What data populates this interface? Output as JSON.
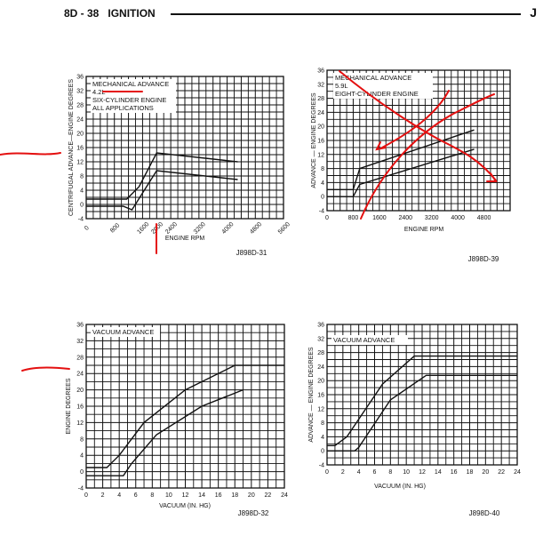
{
  "header": {
    "section": "8D - 38",
    "title": "IGNITION",
    "corner": "J"
  },
  "chart_data": [
    {
      "type": "line",
      "title": "MECHANICAL ADVANCE",
      "notes": [
        "4.2L",
        "SIX-CYLINDER ENGINE",
        "ALL APPLICATIONS"
      ],
      "xlabel": "ENGINE RPM",
      "ylabel": "CENTRIFUGAL ADVANCE—ENGINE DEGREES",
      "xlim": [
        0,
        5600
      ],
      "ylim": [
        -4,
        36
      ],
      "x_ticks": [
        "0",
        "800",
        "1600",
        "2000",
        "2400",
        "3200",
        "4000",
        "4800",
        "5600"
      ],
      "y_ticks": [
        "36",
        "32",
        "28",
        "24",
        "20",
        "16",
        "12",
        "8",
        "4",
        "0",
        "-4"
      ],
      "series": [
        {
          "name": "upper",
          "x": [
            0,
            1150,
            1500,
            2000,
            4300
          ],
          "y": [
            1.5,
            1.5,
            5,
            14.5,
            12
          ]
        },
        {
          "name": "lower",
          "x": [
            0,
            1050,
            1300,
            2000,
            4300
          ],
          "y": [
            -0.5,
            -0.5,
            -1.5,
            9.5,
            7
          ]
        }
      ],
      "figure_id": "J898D-31"
    },
    {
      "type": "line",
      "title": "MECHANICAL ADVANCE",
      "notes": [
        "5.9L",
        "EIGHT-CYLINDER ENGINE"
      ],
      "xlabel": "ENGINE RPM",
      "ylabel": "ADVANCE — ENGINE DEGREES",
      "xlim": [
        0,
        5600
      ],
      "ylim": [
        -4,
        36
      ],
      "x_ticks": [
        "0",
        "800",
        "1600",
        "2400",
        "3200",
        "4000",
        "4800"
      ],
      "y_ticks": [
        "36",
        "32",
        "28",
        "24",
        "20",
        "16",
        "12",
        "8",
        "4",
        "0",
        "-4"
      ],
      "series": [
        {
          "name": "upper",
          "x": [
            0,
            800,
            1000,
            4500
          ],
          "y": [
            2,
            2,
            8,
            19
          ]
        },
        {
          "name": "lower",
          "x": [
            0,
            800,
            1000,
            4500
          ],
          "y": [
            0,
            0,
            3.5,
            13.5
          ]
        }
      ],
      "figure_id": "J898D-39"
    },
    {
      "type": "line",
      "title": "VACUUM ADVANCE",
      "xlabel": "VACUUM (IN. HG)",
      "ylabel": "ENGINE DEGREES",
      "xlim": [
        0,
        24
      ],
      "ylim": [
        -4,
        36
      ],
      "x_ticks": [
        "0",
        "2",
        "4",
        "6",
        "8",
        "10",
        "12",
        "14",
        "16",
        "18",
        "20",
        "22",
        "24"
      ],
      "y_ticks": [
        "36",
        "32",
        "28",
        "24",
        "20",
        "16",
        "12",
        "8",
        "4",
        "0",
        "-4"
      ],
      "series": [
        {
          "name": "upper",
          "x": [
            0,
            2.5,
            4,
            7,
            12,
            18,
            24
          ],
          "y": [
            1,
            1,
            4,
            12,
            20,
            26,
            26
          ]
        },
        {
          "name": "lower",
          "x": [
            0,
            4.5,
            5.5,
            8.5,
            14,
            19
          ],
          "y": [
            -1,
            -1,
            2,
            9,
            16,
            20
          ]
        }
      ],
      "figure_id": "J898D-32"
    },
    {
      "type": "line",
      "title": "VACUUM ADVANCE",
      "xlabel": "VACUUM (IN. HG)",
      "ylabel": "ADVANCE — ENGINE DEGREES",
      "xlim": [
        0,
        24
      ],
      "ylim": [
        -4,
        36
      ],
      "x_ticks": [
        "0",
        "2",
        "4",
        "6",
        "8",
        "10",
        "12",
        "14",
        "16",
        "18",
        "20",
        "22",
        "24"
      ],
      "y_ticks": [
        "36",
        "32",
        "28",
        "24",
        "20",
        "16",
        "12",
        "8",
        "4",
        "0",
        "-4"
      ],
      "series": [
        {
          "name": "upper",
          "x": [
            0,
            1,
            2.5,
            7,
            11,
            24
          ],
          "y": [
            1.5,
            1.5,
            4,
            19,
            27,
            27
          ]
        },
        {
          "name": "lower",
          "x": [
            0,
            3.5,
            4,
            8,
            12.5,
            24
          ],
          "y": [
            0,
            0,
            1,
            14.5,
            21.5,
            21.5
          ]
        }
      ],
      "figure_id": "J898D-40"
    }
  ],
  "colors": {
    "ink": "#111111",
    "annotation": "#e41010"
  }
}
